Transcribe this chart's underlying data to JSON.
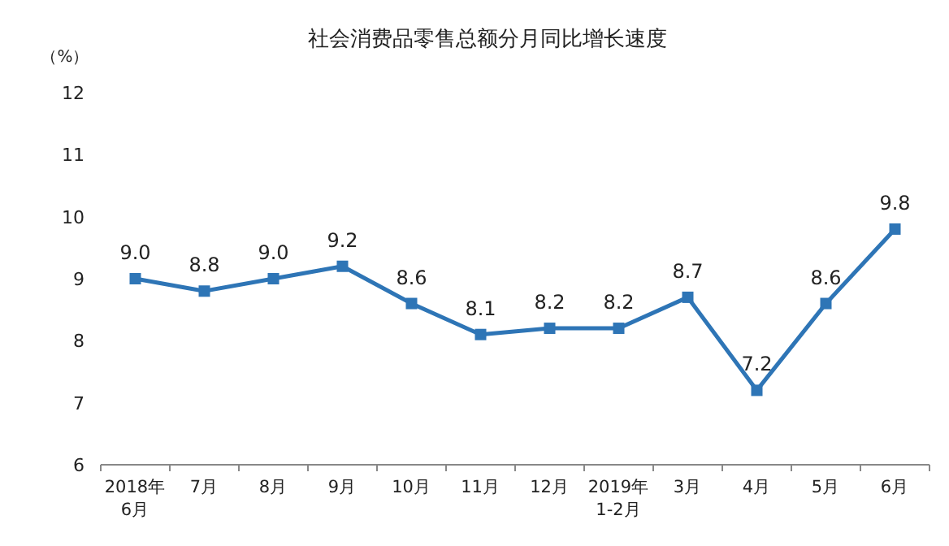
{
  "chart_data": {
    "type": "line",
    "title": "社会消费品零售总额分月同比增长速度",
    "ylabel": "（%）",
    "categories": [
      "2018年\n6月",
      "7月",
      "8月",
      "9月",
      "10月",
      "11月",
      "12月",
      "2019年\n1-2月",
      "3月",
      "4月",
      "5月",
      "6月"
    ],
    "values": [
      9.0,
      8.8,
      9.0,
      9.2,
      8.6,
      8.1,
      8.2,
      8.2,
      8.7,
      7.2,
      8.6,
      9.8
    ],
    "value_labels": [
      "9.0",
      "8.8",
      "9.0",
      "9.2",
      "8.6",
      "8.1",
      "8.2",
      "8.2",
      "8.7",
      "7.2",
      "8.6",
      "9.8"
    ],
    "color": "#2e75b6",
    "marker": "square",
    "ylim": [
      6,
      12
    ],
    "yticks": [
      6,
      7,
      8,
      9,
      10,
      11,
      12
    ],
    "grid": false
  }
}
